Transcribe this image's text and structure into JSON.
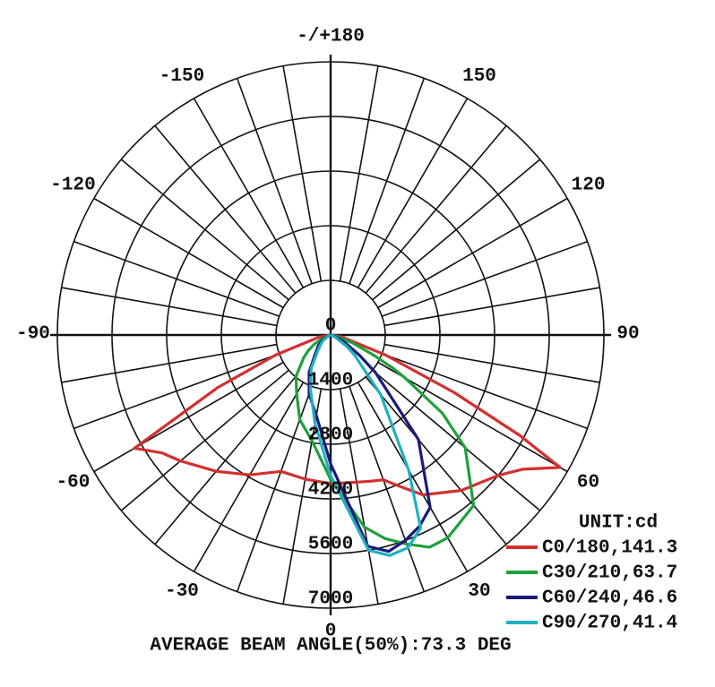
{
  "chart_data": {
    "type": "polar",
    "unit_label": "UNIT:cd",
    "annotation": "AVERAGE BEAM ANGLE(50%):73.3 DEG",
    "rlim": [
      0,
      7000
    ],
    "rticks": [
      0,
      1400,
      2800,
      4200,
      5600,
      7000
    ],
    "angle_ticks": [
      {
        "value": 180,
        "label": "-/+180"
      },
      -150,
      150,
      -120,
      120,
      -90,
      90,
      -60,
      60,
      -30,
      30,
      0
    ],
    "grid": true,
    "x": [
      -90,
      -80,
      -70,
      -65,
      -60,
      -55,
      -50,
      -40,
      -30,
      -20,
      -10,
      0,
      10,
      15,
      20,
      25,
      30,
      40,
      50,
      55,
      60,
      62,
      65,
      70,
      80,
      90
    ],
    "series": [
      {
        "name": "C0/180,141.3",
        "color": "#d32f2f",
        "values": [
          0,
          300,
          1500,
          3200,
          5800,
          5270,
          5020,
          4560,
          4140,
          3720,
          3750,
          3810,
          3830,
          3880,
          3950,
          4300,
          4730,
          5200,
          5600,
          6000,
          6790,
          5500,
          3500,
          1500,
          300,
          0
        ]
      },
      {
        "name": "C30/210,63.7",
        "color": "#1ea03c",
        "values": [
          0,
          0,
          100,
          300,
          500,
          700,
          900,
          1380,
          1740,
          2310,
          2750,
          3700,
          5000,
          5400,
          5700,
          6000,
          6000,
          5700,
          4500,
          3500,
          2200,
          1800,
          1200,
          600,
          100,
          0
        ]
      },
      {
        "name": "C60/240,46.6",
        "color": "#1a1a7a",
        "values": [
          0,
          0,
          0,
          100,
          200,
          300,
          400,
          600,
          1100,
          1610,
          2100,
          3300,
          5500,
          5740,
          5600,
          5400,
          5100,
          3500,
          1500,
          900,
          500,
          400,
          250,
          100,
          0,
          0
        ]
      },
      {
        "name": "C90/270,41.4",
        "color": "#20b0c0",
        "values": [
          0,
          0,
          0,
          50,
          100,
          200,
          300,
          500,
          1000,
          1500,
          2300,
          3600,
          5600,
          5850,
          5800,
          5460,
          4000,
          2000,
          800,
          500,
          200,
          150,
          100,
          0,
          0,
          0
        ]
      }
    ]
  }
}
